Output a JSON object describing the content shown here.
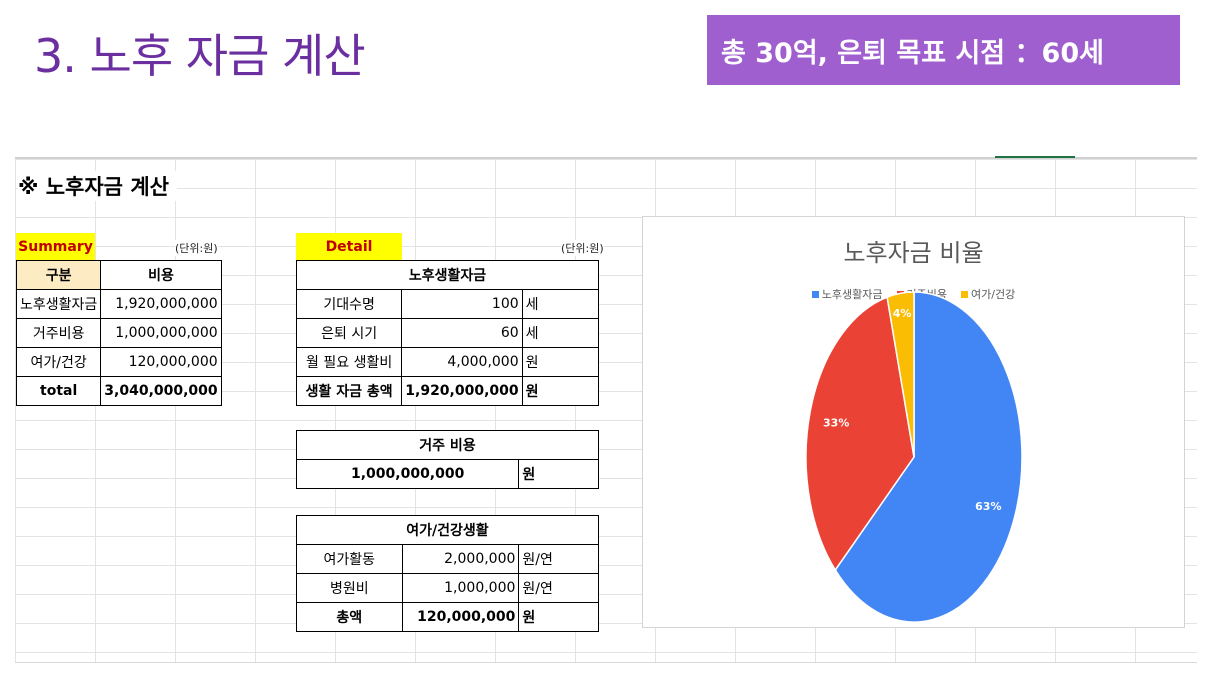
{
  "slide": {
    "title": "3. 노후 자금 계산",
    "banner": "총 30억, 은퇴 목표 시점 ：60세"
  },
  "sheet": {
    "title": "※ 노후자금 계산",
    "summary": {
      "tag": "Summary",
      "unit": "(단위:원)",
      "headers": [
        "구분",
        "비용"
      ],
      "rows": [
        {
          "label": "노후생활자금",
          "value": "1,920,000,000"
        },
        {
          "label": "거주비용",
          "value": "1,000,000,000"
        },
        {
          "label": "여가/건강",
          "value": "120,000,000"
        }
      ],
      "total": {
        "label": "total",
        "value": "3,040,000,000"
      }
    },
    "detail": {
      "tag": "Detail",
      "unit": "(단위:원)",
      "living": {
        "header": "노후생활자금",
        "rows": [
          {
            "label": "기대수명",
            "value": "100",
            "unit": "세"
          },
          {
            "label": "은퇴 시기",
            "value": "60",
            "unit": "세"
          },
          {
            "label": "월 필요 생활비",
            "value": "4,000,000",
            "unit": "원"
          }
        ],
        "total": {
          "label": "생활 자금 총액",
          "value": "1,920,000,000",
          "unit": "원"
        }
      },
      "housing": {
        "header": "거주 비용",
        "value": "1,000,000,000",
        "unit": "원"
      },
      "leisure": {
        "header": "여가/건강생활",
        "rows": [
          {
            "label": "여가활동",
            "value": "2,000,000",
            "unit": "원/연"
          },
          {
            "label": "병원비",
            "value": "1,000,000",
            "unit": "원/연"
          }
        ],
        "total": {
          "label": "총액",
          "value": "120,000,000",
          "unit": "원"
        }
      }
    }
  },
  "chart_data": {
    "type": "pie",
    "title": "노후자금 비율",
    "legend_position": "top",
    "categories": [
      "노후생활자금",
      "거주비용",
      "여가/건강"
    ],
    "values": [
      63,
      33,
      4
    ],
    "labels": [
      "63%",
      "33%",
      "4%"
    ],
    "colors": [
      "#4285f4",
      "#ea4335",
      "#fbbc04"
    ]
  }
}
